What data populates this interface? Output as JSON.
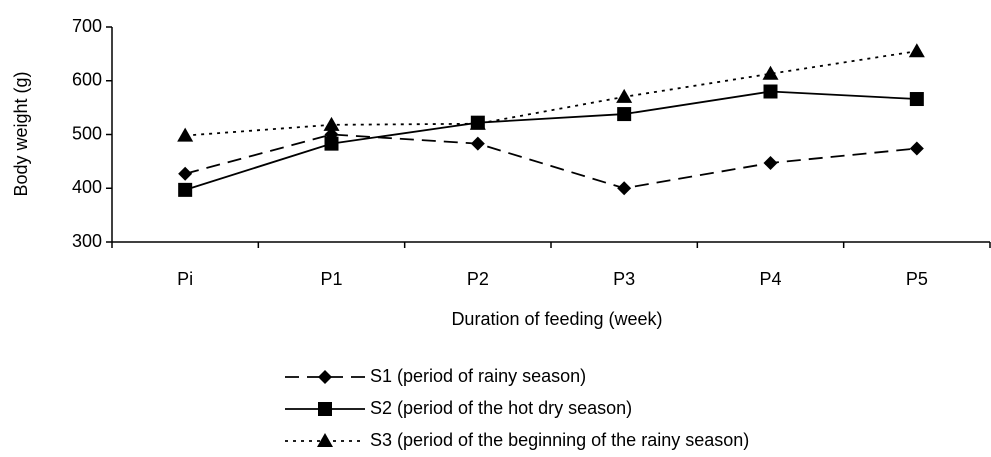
{
  "chart_data": {
    "type": "line",
    "x_label": "Duration of feeding (week)",
    "y_label": "Body weight (g)",
    "categories": [
      "Pi",
      "P1",
      "P2",
      "P3",
      "P4",
      "P5"
    ],
    "series": [
      {
        "name": "S1 (period of rainy season)",
        "color": "#000000",
        "dash": "14 8",
        "marker": "diamond",
        "values": [
          427,
          500,
          483,
          400,
          447,
          474
        ]
      },
      {
        "name": "S2 (period of the hot dry season)",
        "color": "#000000",
        "dash": "none",
        "marker": "square",
        "values": [
          397,
          483,
          522,
          538,
          580,
          566
        ]
      },
      {
        "name": "S3 (period of the beginning of the rainy season)",
        "color": "#000000",
        "dash": "3 5",
        "marker": "triangle",
        "values": [
          498,
          518,
          520,
          570,
          613,
          655
        ]
      }
    ],
    "ylim": [
      300,
      700
    ],
    "yticks": [
      300,
      400,
      500,
      600,
      700
    ],
    "grid": false
  }
}
